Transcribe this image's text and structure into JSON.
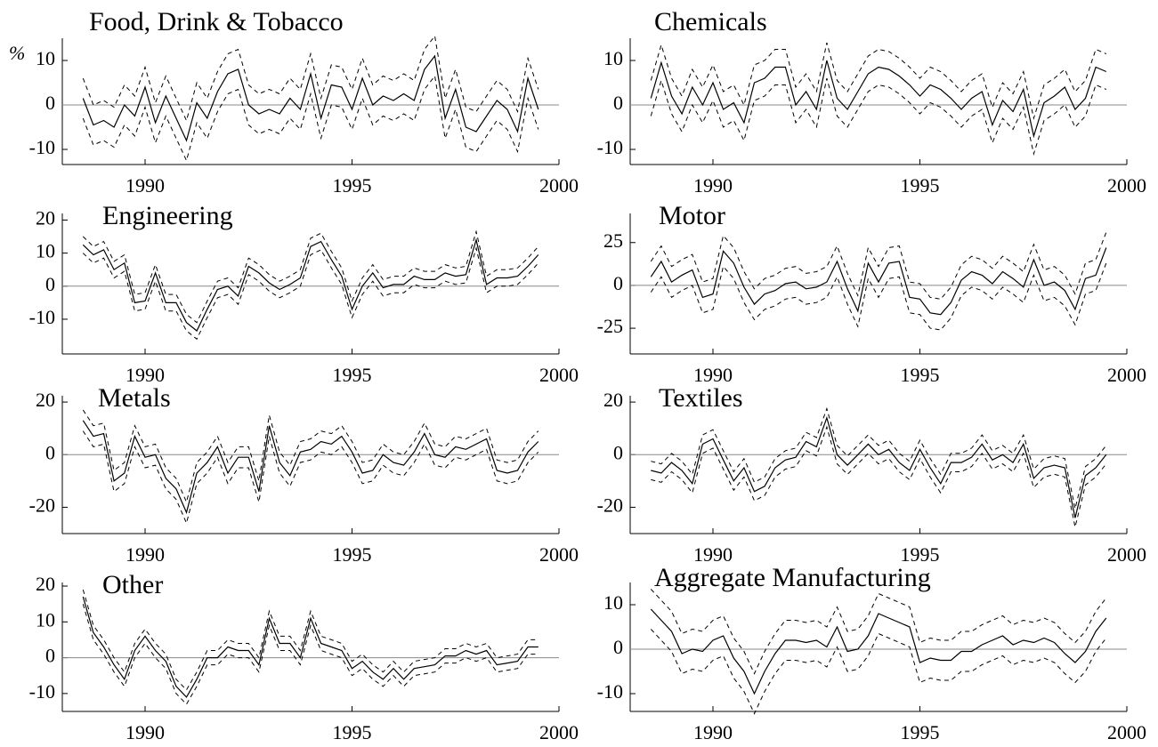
{
  "chart_data": [
    {
      "type": "line",
      "title": "Food, Drink & Tobacco",
      "ylabel": "%",
      "x": [
        1988.5,
        1988.75,
        1989,
        1989.25,
        1989.5,
        1989.75,
        1990,
        1990.25,
        1990.5,
        1990.75,
        1991,
        1991.25,
        1991.5,
        1991.75,
        1992,
        1992.25,
        1992.5,
        1992.75,
        1993,
        1993.25,
        1993.5,
        1993.75,
        1994,
        1994.25,
        1994.5,
        1994.75,
        1995,
        1995.25,
        1995.5,
        1995.75,
        1996,
        1996.25,
        1996.5,
        1996.75,
        1997,
        1997.25,
        1997.5,
        1997.75,
        1998,
        1998.25,
        1998.5,
        1998.75,
        1999,
        1999.25,
        1999.5
      ],
      "values": [
        1.5,
        -4.5,
        -3.5,
        -5,
        0,
        -2.5,
        4,
        -4,
        2,
        -3,
        -8,
        0.5,
        -3,
        3,
        7,
        8,
        0,
        -2,
        -1,
        -2,
        1.5,
        -1,
        7,
        -3,
        4.5,
        4,
        -1,
        6,
        0,
        2,
        1,
        2.5,
        1,
        8,
        11,
        -3,
        3.5,
        -5,
        -6,
        -2.5,
        1,
        -1,
        -6,
        6,
        -1
      ],
      "band": 4.5,
      "color": "#000000",
      "band_dashed": true,
      "zero_line": true,
      "xlim": [
        1988,
        2000
      ],
      "xticks": [
        1990,
        1995,
        2000
      ],
      "ylim": [
        -13.4,
        15
      ],
      "yticks": [
        -10,
        0,
        10
      ]
    },
    {
      "type": "line",
      "title": "Chemicals",
      "x": [
        1988.5,
        1988.75,
        1989,
        1989.25,
        1989.5,
        1989.75,
        1990,
        1990.25,
        1990.5,
        1990.75,
        1991,
        1991.25,
        1991.5,
        1991.75,
        1992,
        1992.25,
        1992.5,
        1992.75,
        1993,
        1993.25,
        1993.5,
        1993.75,
        1994,
        1994.25,
        1994.5,
        1994.75,
        1995,
        1995.25,
        1995.5,
        1995.75,
        1996,
        1996.25,
        1996.5,
        1996.75,
        1997,
        1997.25,
        1997.5,
        1997.75,
        1998,
        1998.25,
        1998.5,
        1998.75,
        1999,
        1999.25,
        1999.5
      ],
      "values": [
        1.5,
        9.5,
        2,
        -2,
        4,
        0,
        5,
        -1,
        0.5,
        -4,
        5,
        6,
        8.5,
        8.5,
        0,
        3,
        -1,
        10,
        1.5,
        -1,
        3,
        7,
        8.5,
        8,
        6.5,
        4.5,
        2,
        4.5,
        3.5,
        1.5,
        -1,
        1.5,
        3,
        -4.5,
        1,
        -1.5,
        3.5,
        -7,
        0.5,
        2,
        4,
        -1,
        1.5,
        8.5,
        7.5
      ],
      "band": 4,
      "color": "#000000",
      "band_dashed": true,
      "zero_line": true,
      "xlim": [
        1988,
        2000
      ],
      "xticks": [
        1990,
        1995,
        2000
      ],
      "ylim": [
        -13.4,
        15
      ],
      "yticks": [
        -10,
        0,
        10
      ]
    },
    {
      "type": "line",
      "title": "Engineering",
      "x": [
        1988.5,
        1988.75,
        1989,
        1989.25,
        1989.5,
        1989.75,
        1990,
        1990.25,
        1990.5,
        1990.75,
        1991,
        1991.25,
        1991.5,
        1991.75,
        1992,
        1992.25,
        1992.5,
        1992.75,
        1993,
        1993.25,
        1993.5,
        1993.75,
        1994,
        1994.25,
        1994.5,
        1994.75,
        1995,
        1995.25,
        1995.5,
        1995.75,
        1996,
        1996.25,
        1996.5,
        1996.75,
        1997,
        1997.25,
        1997.5,
        1997.75,
        1998,
        1998.25,
        1998.5,
        1998.75,
        1999,
        1999.25,
        1999.5
      ],
      "values": [
        12.5,
        9.5,
        11,
        5,
        7,
        -5,
        -4.5,
        4,
        -5,
        -5,
        -11,
        -13.5,
        -7,
        -1,
        0,
        -3,
        6,
        4,
        1,
        -1,
        0.5,
        2.5,
        12,
        13.5,
        8,
        3,
        -7,
        0,
        4,
        -0.5,
        0.5,
        0.5,
        3,
        2,
        2,
        4,
        3,
        3.5,
        14,
        0.5,
        2.5,
        2.5,
        3,
        6,
        9.5
      ],
      "band": 2.5,
      "color": "#000000",
      "band_dashed": true,
      "zero_line": true,
      "xlim": [
        1988,
        2000
      ],
      "xticks": [
        1990,
        1995,
        2000
      ],
      "ylim": [
        -20.5,
        22
      ],
      "yticks": [
        -10,
        0,
        10,
        20
      ]
    },
    {
      "type": "line",
      "title": "Motor",
      "x": [
        1988.5,
        1988.75,
        1989,
        1989.25,
        1989.5,
        1989.75,
        1990,
        1990.25,
        1990.5,
        1990.75,
        1991,
        1991.25,
        1991.5,
        1991.75,
        1992,
        1992.25,
        1992.5,
        1992.75,
        1993,
        1993.25,
        1993.5,
        1993.75,
        1994,
        1994.25,
        1994.5,
        1994.75,
        1995,
        1995.25,
        1995.5,
        1995.75,
        1996,
        1996.25,
        1996.5,
        1996.75,
        1997,
        1997.25,
        1997.5,
        1997.75,
        1998,
        1998.25,
        1998.5,
        1998.75,
        1999,
        1999.25,
        1999.5
      ],
      "values": [
        5,
        14,
        2,
        6,
        9,
        -7,
        -5,
        20,
        13,
        -1,
        -11,
        -5,
        -3,
        1,
        2,
        -2,
        -1,
        2,
        14,
        -2,
        -15,
        13,
        2,
        13,
        14,
        -7,
        -8,
        -16,
        -17,
        -10,
        3,
        8,
        6,
        1,
        8,
        4,
        -1,
        15,
        0,
        2,
        -3,
        -14,
        4,
        6,
        22
      ],
      "band": 9,
      "color": "#000000",
      "band_dashed": true,
      "zero_line": true,
      "xlim": [
        1988,
        2000
      ],
      "xticks": [
        1990,
        1995,
        2000
      ],
      "ylim": [
        -40,
        42
      ],
      "yticks": [
        -25,
        0,
        25
      ]
    },
    {
      "type": "line",
      "title": "Metals",
      "x": [
        1988.5,
        1988.75,
        1989,
        1989.25,
        1989.5,
        1989.75,
        1990,
        1990.25,
        1990.5,
        1990.75,
        1991,
        1991.25,
        1991.5,
        1991.75,
        1992,
        1992.25,
        1992.5,
        1992.75,
        1993,
        1993.25,
        1993.5,
        1993.75,
        1994,
        1994.25,
        1994.5,
        1994.75,
        1995,
        1995.25,
        1995.5,
        1995.75,
        1996,
        1996.25,
        1996.5,
        1996.75,
        1997,
        1997.25,
        1997.5,
        1997.75,
        1998,
        1998.25,
        1998.5,
        1998.75,
        1999,
        1999.25,
        1999.5
      ],
      "values": [
        13,
        7,
        8,
        -10,
        -7,
        7,
        -1,
        0,
        -9,
        -13,
        -22,
        -7,
        -3,
        3,
        -7,
        -1,
        -1,
        -14,
        11,
        -3,
        -8,
        1,
        2,
        5,
        4,
        7,
        1,
        -7,
        -6,
        0,
        -3,
        -4,
        1,
        8,
        0,
        -1,
        3,
        2,
        4,
        6,
        -6,
        -7,
        -6,
        1,
        5
      ],
      "band": 4,
      "color": "#000000",
      "band_dashed": true,
      "zero_line": true,
      "xlim": [
        1988,
        2000
      ],
      "xticks": [
        1990,
        1995,
        2000
      ],
      "ylim": [
        -30,
        22.4
      ],
      "yticks": [
        -20,
        0,
        20
      ]
    },
    {
      "type": "line",
      "title": "Textiles",
      "x": [
        1988.5,
        1988.75,
        1989,
        1989.25,
        1989.5,
        1989.75,
        1990,
        1990.25,
        1990.5,
        1990.75,
        1991,
        1991.25,
        1991.5,
        1991.75,
        1992,
        1992.25,
        1992.5,
        1992.75,
        1993,
        1993.25,
        1993.5,
        1993.75,
        1994,
        1994.25,
        1994.5,
        1994.75,
        1995,
        1995.25,
        1995.5,
        1995.75,
        1996,
        1996.25,
        1996.5,
        1996.75,
        1997,
        1997.25,
        1997.5,
        1997.75,
        1998,
        1998.25,
        1998.5,
        1998.75,
        1999,
        1999.25,
        1999.5
      ],
      "values": [
        -6,
        -7,
        -3,
        -6,
        -11,
        4,
        6,
        -2,
        -10,
        -5,
        -14,
        -12,
        -5,
        -2,
        -1,
        5,
        3,
        14,
        0,
        -4,
        0,
        4,
        0,
        2,
        -3,
        -6,
        2,
        -5,
        -11,
        -3,
        -3,
        -1,
        4,
        -2,
        0,
        -3,
        4,
        -9,
        -5,
        -4,
        -5,
        -24,
        -8,
        -5,
        0
      ],
      "band": 3.5,
      "color": "#000000",
      "band_dashed": true,
      "zero_line": true,
      "xlim": [
        1988,
        2000
      ],
      "xticks": [
        1990,
        1995,
        2000
      ],
      "ylim": [
        -30,
        22.4
      ],
      "yticks": [
        -20,
        0,
        20
      ]
    },
    {
      "type": "line",
      "title": "Other",
      "x": [
        1988.5,
        1988.75,
        1989,
        1989.25,
        1989.5,
        1989.75,
        1990,
        1990.25,
        1990.5,
        1990.75,
        1991,
        1991.25,
        1991.5,
        1991.75,
        1992,
        1992.25,
        1992.5,
        1992.75,
        1993,
        1993.25,
        1993.5,
        1993.75,
        1994,
        1994.25,
        1994.5,
        1994.75,
        1995,
        1995.25,
        1995.5,
        1995.75,
        1996,
        1996.25,
        1996.5,
        1996.75,
        1997,
        1997.25,
        1997.5,
        1997.75,
        1998,
        1998.25,
        1998.5,
        1998.75,
        1999,
        1999.25,
        1999.5
      ],
      "values": [
        17,
        7,
        3,
        -2,
        -6,
        2,
        6,
        2,
        -1,
        -8,
        -11,
        -6,
        0,
        0,
        3,
        2,
        2,
        -2,
        11,
        4,
        4,
        0,
        11,
        4,
        3,
        2,
        -3,
        -1,
        -4,
        -6,
        -3,
        -6,
        -3,
        -2.5,
        -2,
        0.5,
        0.5,
        2,
        1,
        2,
        -2,
        -1.5,
        -1,
        3,
        3
      ],
      "band": 2,
      "color": "#000000",
      "band_dashed": true,
      "zero_line": true,
      "xlim": [
        1988,
        2000
      ],
      "xticks": [
        1990,
        1995,
        2000
      ],
      "ylim": [
        -15,
        21
      ],
      "yticks": [
        -10,
        0,
        10,
        20
      ]
    },
    {
      "type": "line",
      "title": "Aggregate Manufacturing",
      "x": [
        1988.5,
        1988.75,
        1989,
        1989.25,
        1989.5,
        1989.75,
        1990,
        1990.25,
        1990.5,
        1990.75,
        1991,
        1991.25,
        1991.5,
        1991.75,
        1992,
        1992.25,
        1992.5,
        1992.75,
        1993,
        1993.25,
        1993.5,
        1993.75,
        1994,
        1994.25,
        1994.5,
        1994.75,
        1995,
        1995.25,
        1995.5,
        1995.75,
        1996,
        1996.25,
        1996.5,
        1996.75,
        1997,
        1997.25,
        1997.5,
        1997.75,
        1998,
        1998.25,
        1998.5,
        1998.75,
        1999,
        1999.25,
        1999.5
      ],
      "values": [
        9,
        6.5,
        4,
        -1,
        0,
        -0.5,
        2,
        3,
        -2,
        -5,
        -10,
        -5,
        -1,
        2,
        2,
        1.5,
        2,
        0.5,
        5,
        -0.5,
        0,
        3,
        8,
        7,
        6,
        5,
        -3,
        -2,
        -2.5,
        -2.5,
        -0.5,
        -0.5,
        1,
        2,
        3,
        1,
        2,
        1.5,
        2.5,
        1.5,
        -1,
        -3,
        -0.5,
        4,
        7
      ],
      "band": 4.5,
      "color": "#000000",
      "band_dashed": true,
      "zero_line": true,
      "xlim": [
        1988,
        2000
      ],
      "xticks": [
        1990,
        1995,
        2000
      ],
      "ylim": [
        -14,
        15
      ],
      "yticks": [
        -10,
        0,
        10
      ]
    }
  ]
}
